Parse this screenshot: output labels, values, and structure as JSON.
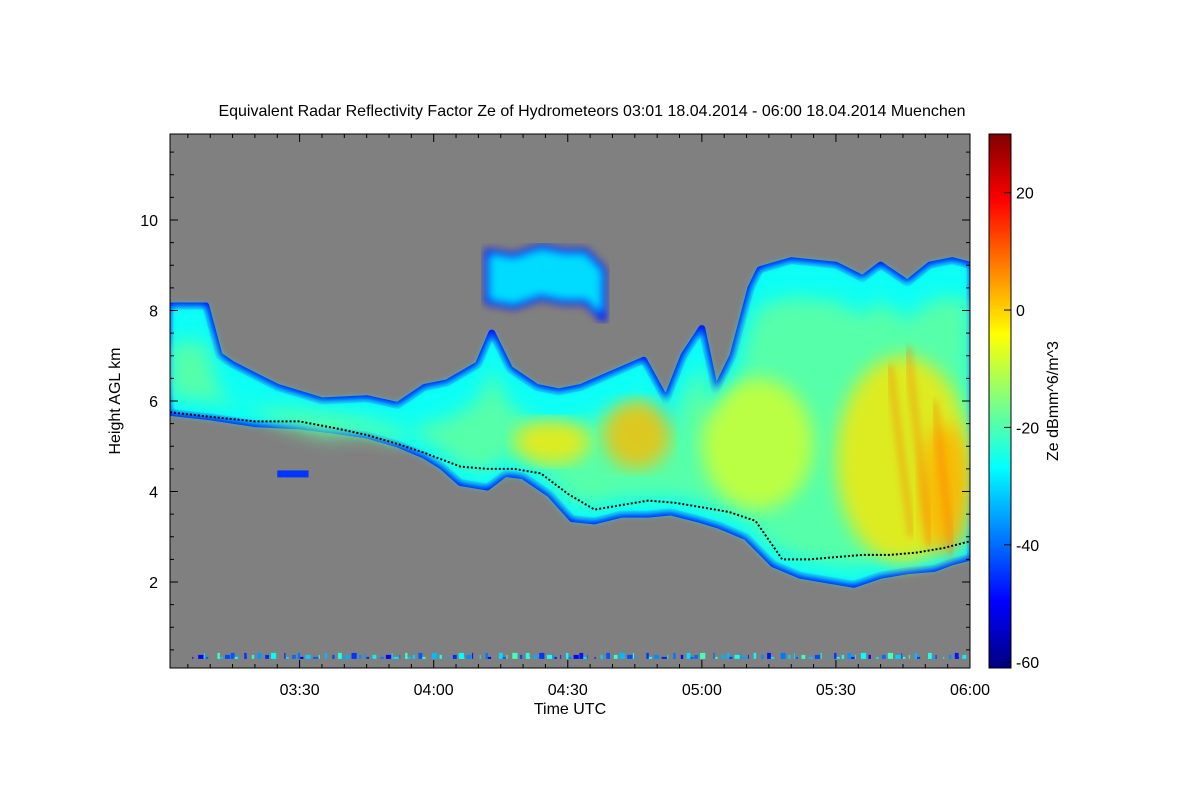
{
  "chart_data": {
    "type": "heatmap",
    "title": "Equivalent Radar Reflectivity Factor Ze of Hydrometeors   03:01 18.04.2014 - 06:00 18.04.2014 Muenchen",
    "xlabel": "Time UTC",
    "ylabel": "Height AGL km",
    "xlim_minutes": [
      181,
      360
    ],
    "ylim_km": [
      0.1,
      11.9
    ],
    "x_ticks": [
      {
        "label": "03:30",
        "minutes": 210
      },
      {
        "label": "04:00",
        "minutes": 240
      },
      {
        "label": "04:30",
        "minutes": 270
      },
      {
        "label": "05:00",
        "minutes": 300
      },
      {
        "label": "05:30",
        "minutes": 330
      },
      {
        "label": "06:00",
        "minutes": 360
      }
    ],
    "y_ticks": [
      {
        "label": "2",
        "value": 2
      },
      {
        "label": "4",
        "value": 4
      },
      {
        "label": "6",
        "value": 6
      },
      {
        "label": "8",
        "value": 8
      },
      {
        "label": "10",
        "value": 10
      }
    ],
    "colorbar": {
      "label": "Ze dBmm^6/m^3",
      "range": [
        -61,
        30
      ],
      "ticks": [
        {
          "label": "20",
          "value": 20
        },
        {
          "label": "0",
          "value": 0
        },
        {
          "label": "-20",
          "value": -20
        },
        {
          "label": "-40",
          "value": -40
        },
        {
          "label": "-60",
          "value": -60
        }
      ],
      "colormap": [
        "#000080",
        "#0000ff",
        "#0080ff",
        "#00ffff",
        "#80ff80",
        "#ffff00",
        "#ff8000",
        "#ff0000",
        "#800000"
      ]
    },
    "background_color": "#808080",
    "cloud_top_km": [
      [
        181,
        8.1
      ],
      [
        189,
        8.1
      ],
      [
        192,
        7.0
      ],
      [
        195,
        6.8
      ],
      [
        205,
        6.3
      ],
      [
        215,
        6.0
      ],
      [
        225,
        6.05
      ],
      [
        232,
        5.9
      ],
      [
        238,
        6.3
      ],
      [
        243,
        6.4
      ],
      [
        250,
        6.8
      ],
      [
        253,
        7.5
      ],
      [
        257,
        6.7
      ],
      [
        263,
        6.3
      ],
      [
        268,
        6.2
      ],
      [
        273,
        6.3
      ],
      [
        280,
        6.6
      ],
      [
        287,
        6.9
      ],
      [
        292,
        6.0
      ],
      [
        296,
        7.0
      ],
      [
        300,
        7.6
      ],
      [
        303,
        6.2
      ],
      [
        307,
        7.0
      ],
      [
        311,
        8.5
      ],
      [
        313,
        8.9
      ],
      [
        320,
        9.1
      ],
      [
        330,
        9.0
      ],
      [
        336,
        8.7
      ],
      [
        340,
        9.0
      ],
      [
        346,
        8.6
      ],
      [
        351,
        9.0
      ],
      [
        356,
        9.1
      ],
      [
        360,
        9.0
      ]
    ],
    "upper_anvil_km": [
      [
        252,
        9.3
      ],
      [
        258,
        9.2
      ],
      [
        264,
        9.4
      ],
      [
        269,
        9.3
      ],
      [
        274,
        9.3
      ],
      [
        278,
        8.9
      ]
    ],
    "cloud_base_km": [
      [
        181,
        5.75
      ],
      [
        190,
        5.65
      ],
      [
        200,
        5.5
      ],
      [
        210,
        5.45
      ],
      [
        218,
        5.35
      ],
      [
        225,
        5.25
      ],
      [
        232,
        5.05
      ],
      [
        238,
        4.8
      ],
      [
        242,
        4.55
      ],
      [
        246,
        4.2
      ],
      [
        252,
        4.1
      ],
      [
        256,
        4.4
      ],
      [
        260,
        4.35
      ],
      [
        266,
        3.95
      ],
      [
        271,
        3.4
      ],
      [
        276,
        3.35
      ],
      [
        282,
        3.5
      ],
      [
        288,
        3.5
      ],
      [
        293,
        3.55
      ],
      [
        299,
        3.4
      ],
      [
        304,
        3.25
      ],
      [
        310,
        3.0
      ],
      [
        316,
        2.4
      ],
      [
        322,
        2.15
      ],
      [
        328,
        2.05
      ],
      [
        334,
        1.95
      ],
      [
        340,
        2.15
      ],
      [
        346,
        2.25
      ],
      [
        352,
        2.3
      ],
      [
        356,
        2.45
      ],
      [
        360,
        2.55
      ]
    ],
    "core_regions": [
      {
        "t0": 258,
        "t1": 275,
        "h0": 4.6,
        "h1": 5.6,
        "dbz": -2
      },
      {
        "t0": 278,
        "t1": 293,
        "h0": 4.5,
        "h1": 6.0,
        "dbz": 2
      },
      {
        "t0": 300,
        "t1": 325,
        "h0": 3.6,
        "h1": 6.5,
        "dbz": -8
      },
      {
        "t0": 330,
        "t1": 360,
        "h0": 2.4,
        "h1": 7.0,
        "dbz": -2
      },
      {
        "t0": 349,
        "t1": 360,
        "h0": 2.6,
        "h1": 5.5,
        "dbz": 3
      }
    ],
    "fall_streaks": [
      {
        "t0": 342,
        "h0": 6.8,
        "t1": 347,
        "h1": 3.0
      },
      {
        "t0": 346,
        "h0": 7.2,
        "t1": 351,
        "h1": 2.8
      },
      {
        "t0": 352,
        "h0": 6.0,
        "t1": 356,
        "h1": 2.6
      }
    ],
    "base_detections_km": [
      [
        181,
        5.75
      ],
      [
        190,
        5.65
      ],
      [
        200,
        5.55
      ],
      [
        210,
        5.55
      ],
      [
        218,
        5.4
      ],
      [
        225,
        5.25
      ],
      [
        232,
        5.05
      ],
      [
        238,
        4.85
      ],
      [
        246,
        4.55
      ],
      [
        252,
        4.5
      ],
      [
        258,
        4.5
      ],
      [
        264,
        4.4
      ],
      [
        270,
        3.95
      ],
      [
        276,
        3.6
      ],
      [
        282,
        3.7
      ],
      [
        288,
        3.8
      ],
      [
        294,
        3.75
      ],
      [
        300,
        3.65
      ],
      [
        306,
        3.55
      ],
      [
        312,
        3.35
      ],
      [
        318,
        2.5
      ],
      [
        324,
        2.5
      ],
      [
        330,
        2.55
      ],
      [
        336,
        2.6
      ],
      [
        342,
        2.6
      ],
      [
        348,
        2.65
      ],
      [
        354,
        2.75
      ],
      [
        360,
        2.9
      ]
    ],
    "isolated_echo": {
      "t0": 205,
      "t1": 212,
      "h": 4.4
    }
  }
}
